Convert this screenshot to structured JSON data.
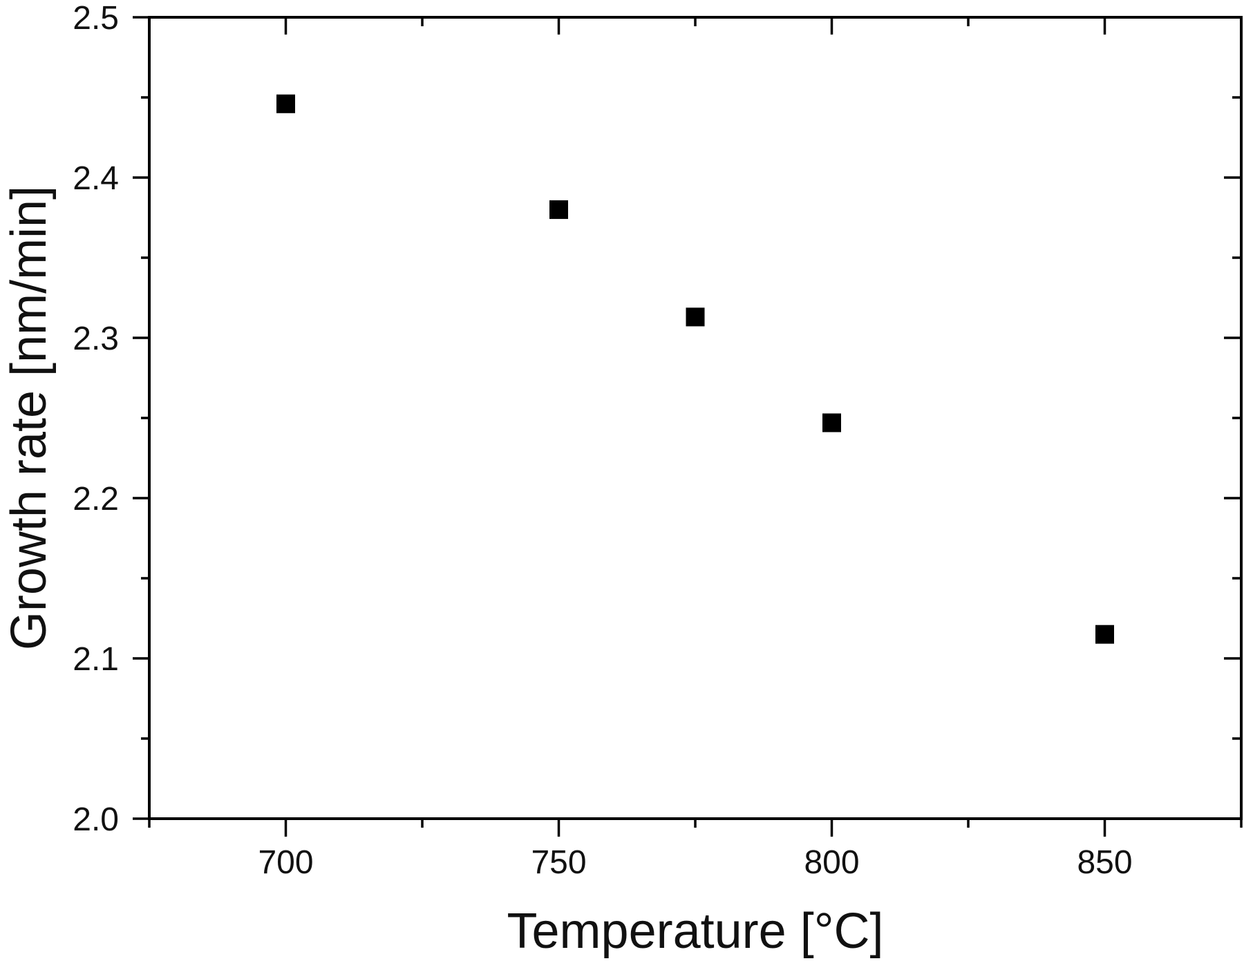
{
  "chart_data": {
    "type": "scatter",
    "title": "",
    "xlabel": "Temperature [°C]",
    "ylabel": "Growth rate [nm/min]",
    "xlim": [
      675,
      875
    ],
    "ylim": [
      2.0,
      2.5
    ],
    "grid": false,
    "legend": null,
    "x_ticks": [
      700,
      750,
      800,
      850
    ],
    "x_tick_labels": [
      "700",
      "750",
      "800",
      "850"
    ],
    "x_minor_ticks": [
      675,
      725,
      775,
      825,
      875
    ],
    "y_ticks": [
      2.0,
      2.1,
      2.2,
      2.3,
      2.4,
      2.5
    ],
    "y_tick_labels": [
      "2.0",
      "2.1",
      "2.2",
      "2.3",
      "2.4",
      "2.5"
    ],
    "y_minor_ticks": [
      2.05,
      2.15,
      2.25,
      2.35,
      2.45
    ],
    "marker": "square",
    "marker_color": "#000000",
    "series": [
      {
        "name": "Growth rate",
        "x": [
          700,
          750,
          775,
          800,
          850
        ],
        "y": [
          2.446,
          2.38,
          2.313,
          2.247,
          2.115
        ]
      }
    ]
  }
}
